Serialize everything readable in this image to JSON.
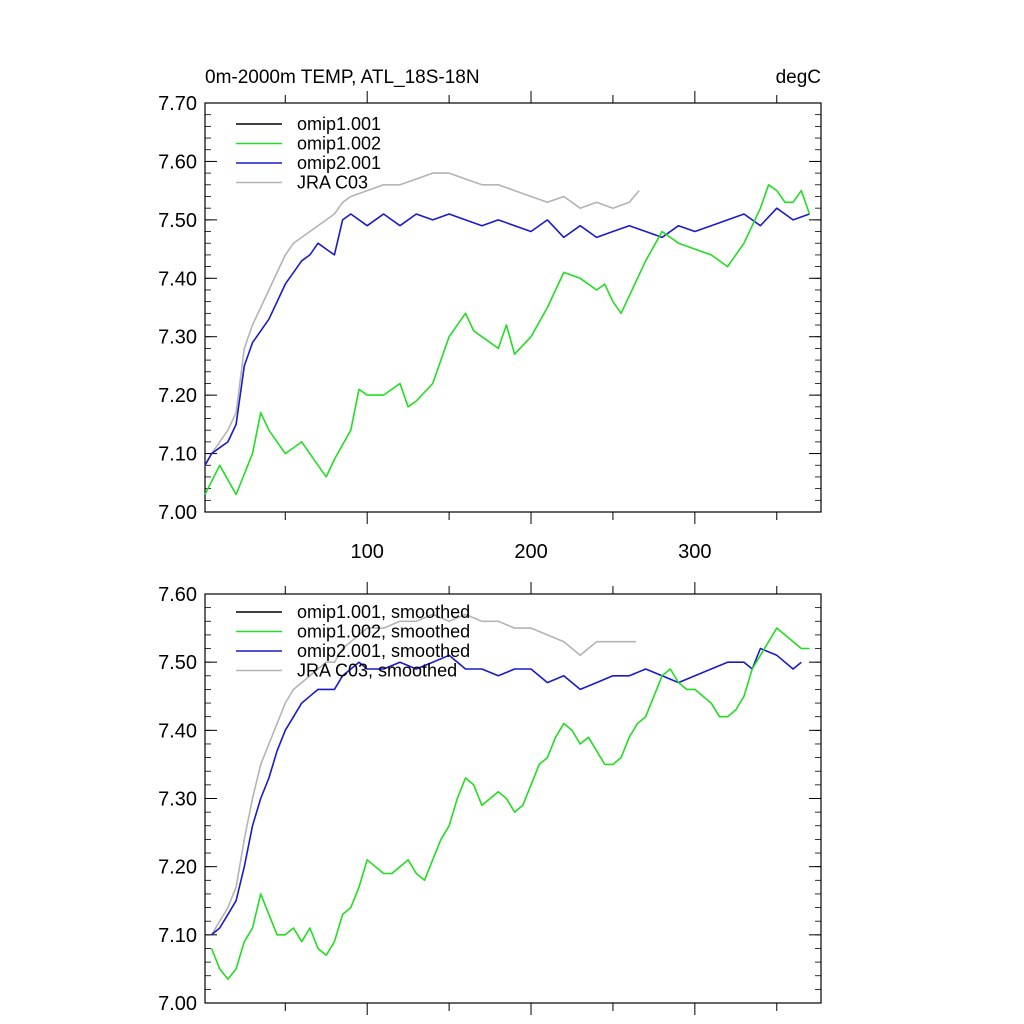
{
  "chart_data": [
    {
      "type": "line",
      "title": "0m-2000m TEMP, ATL_18S-18N",
      "units": "degC",
      "xlabel": "",
      "ylabel": "",
      "xlim": [
        1,
        377
      ],
      "ylim": [
        7.0,
        7.7
      ],
      "x_ticks": [
        "100",
        "200",
        "300"
      ],
      "y_ticks": [
        "7.00",
        "7.10",
        "7.20",
        "7.30",
        "7.40",
        "7.50",
        "7.60",
        "7.70"
      ],
      "legend_position": "top-left",
      "series": [
        {
          "name": "omip1.001",
          "color": "#000000",
          "x": [],
          "values": []
        },
        {
          "name": "omip1.002",
          "color": "#22dd22",
          "x": [
            1,
            10,
            20,
            30,
            35,
            40,
            50,
            60,
            70,
            75,
            80,
            90,
            95,
            100,
            110,
            120,
            125,
            130,
            140,
            145,
            150,
            160,
            165,
            170,
            180,
            185,
            190,
            200,
            210,
            220,
            230,
            240,
            245,
            250,
            255,
            260,
            270,
            280,
            290,
            300,
            310,
            320,
            330,
            340,
            345,
            350,
            355,
            360,
            365,
            370
          ],
          "values": [
            7.03,
            7.08,
            7.03,
            7.1,
            7.17,
            7.14,
            7.1,
            7.12,
            7.08,
            7.06,
            7.09,
            7.14,
            7.21,
            7.2,
            7.2,
            7.22,
            7.18,
            7.19,
            7.22,
            7.26,
            7.3,
            7.34,
            7.31,
            7.3,
            7.28,
            7.32,
            7.27,
            7.3,
            7.35,
            7.41,
            7.4,
            7.38,
            7.39,
            7.36,
            7.34,
            7.37,
            7.43,
            7.48,
            7.46,
            7.45,
            7.44,
            7.42,
            7.46,
            7.52,
            7.56,
            7.55,
            7.53,
            7.53,
            7.55,
            7.51
          ]
        },
        {
          "name": "omip2.001",
          "color": "#1a1acc",
          "x": [
            1,
            5,
            10,
            15,
            20,
            25,
            30,
            35,
            40,
            45,
            50,
            55,
            60,
            65,
            70,
            75,
            80,
            85,
            90,
            100,
            110,
            120,
            130,
            140,
            150,
            160,
            170,
            180,
            190,
            200,
            210,
            220,
            230,
            240,
            250,
            260,
            270,
            280,
            290,
            300,
            310,
            320,
            330,
            340,
            350,
            360,
            370
          ],
          "values": [
            7.08,
            7.1,
            7.11,
            7.12,
            7.15,
            7.25,
            7.29,
            7.31,
            7.33,
            7.36,
            7.39,
            7.41,
            7.43,
            7.44,
            7.46,
            7.45,
            7.44,
            7.5,
            7.51,
            7.49,
            7.51,
            7.49,
            7.51,
            7.5,
            7.51,
            7.5,
            7.49,
            7.5,
            7.49,
            7.48,
            7.5,
            7.47,
            7.49,
            7.47,
            7.48,
            7.49,
            7.48,
            7.47,
            7.49,
            7.48,
            7.49,
            7.5,
            7.51,
            7.49,
            7.52,
            7.5,
            7.51
          ]
        },
        {
          "name": "JRA C03",
          "color": "#b4b4b4",
          "x": [
            1,
            5,
            10,
            15,
            20,
            25,
            30,
            35,
            40,
            45,
            50,
            55,
            60,
            65,
            70,
            75,
            80,
            85,
            90,
            100,
            110,
            120,
            130,
            140,
            150,
            160,
            170,
            180,
            190,
            200,
            210,
            220,
            230,
            240,
            250,
            260,
            266
          ],
          "values": [
            7.08,
            7.1,
            7.12,
            7.14,
            7.17,
            7.28,
            7.32,
            7.35,
            7.38,
            7.41,
            7.44,
            7.46,
            7.47,
            7.48,
            7.49,
            7.5,
            7.51,
            7.53,
            7.54,
            7.55,
            7.56,
            7.56,
            7.57,
            7.58,
            7.58,
            7.57,
            7.56,
            7.56,
            7.55,
            7.54,
            7.53,
            7.54,
            7.52,
            7.53,
            7.52,
            7.53,
            7.55
          ]
        }
      ]
    },
    {
      "type": "line",
      "title": "",
      "xlabel": "",
      "ylabel": "",
      "xlim": [
        1,
        377
      ],
      "ylim": [
        7.0,
        7.6
      ],
      "y_ticks": [
        "7.00",
        "7.10",
        "7.20",
        "7.30",
        "7.40",
        "7.50",
        "7.60"
      ],
      "legend_position": "top-left",
      "series": [
        {
          "name": "omip1.001, smoothed",
          "color": "#000000",
          "x": [],
          "values": []
        },
        {
          "name": "omip1.002, smoothed",
          "color": "#22dd22",
          "x": [
            5,
            10,
            15,
            20,
            25,
            30,
            35,
            40,
            45,
            50,
            55,
            60,
            65,
            70,
            75,
            80,
            85,
            90,
            95,
            100,
            105,
            110,
            115,
            120,
            125,
            130,
            135,
            140,
            145,
            150,
            155,
            160,
            165,
            170,
            175,
            180,
            185,
            190,
            195,
            200,
            205,
            210,
            215,
            220,
            225,
            230,
            235,
            240,
            245,
            250,
            255,
            260,
            265,
            270,
            275,
            280,
            285,
            290,
            295,
            300,
            305,
            310,
            315,
            320,
            325,
            330,
            335,
            340,
            345,
            350,
            355,
            360,
            365,
            370
          ],
          "values": [
            7.08,
            7.05,
            7.035,
            7.05,
            7.09,
            7.11,
            7.16,
            7.13,
            7.1,
            7.1,
            7.11,
            7.09,
            7.11,
            7.08,
            7.07,
            7.09,
            7.13,
            7.14,
            7.17,
            7.21,
            7.2,
            7.19,
            7.19,
            7.2,
            7.21,
            7.19,
            7.18,
            7.21,
            7.24,
            7.26,
            7.3,
            7.33,
            7.32,
            7.29,
            7.3,
            7.31,
            7.3,
            7.28,
            7.29,
            7.32,
            7.35,
            7.36,
            7.39,
            7.41,
            7.4,
            7.38,
            7.39,
            7.37,
            7.35,
            7.35,
            7.36,
            7.39,
            7.41,
            7.42,
            7.45,
            7.48,
            7.49,
            7.47,
            7.46,
            7.46,
            7.45,
            7.44,
            7.42,
            7.42,
            7.43,
            7.45,
            7.49,
            7.51,
            7.53,
            7.55,
            7.54,
            7.53,
            7.52,
            7.52
          ]
        },
        {
          "name": "omip2.001, smoothed",
          "color": "#1a1acc",
          "x": [
            5,
            10,
            15,
            20,
            25,
            30,
            35,
            40,
            45,
            50,
            55,
            60,
            65,
            70,
            75,
            80,
            85,
            90,
            95,
            100,
            110,
            120,
            130,
            140,
            150,
            160,
            170,
            180,
            190,
            200,
            210,
            220,
            225,
            230,
            240,
            250,
            260,
            270,
            280,
            290,
            300,
            310,
            320,
            330,
            335,
            340,
            350,
            360,
            365
          ],
          "values": [
            7.1,
            7.11,
            7.13,
            7.15,
            7.2,
            7.26,
            7.3,
            7.33,
            7.37,
            7.4,
            7.42,
            7.44,
            7.45,
            7.46,
            7.46,
            7.46,
            7.48,
            7.49,
            7.5,
            7.49,
            7.49,
            7.5,
            7.49,
            7.5,
            7.51,
            7.49,
            7.49,
            7.48,
            7.49,
            7.49,
            7.47,
            7.48,
            7.47,
            7.46,
            7.47,
            7.48,
            7.48,
            7.49,
            7.48,
            7.47,
            7.48,
            7.49,
            7.5,
            7.5,
            7.49,
            7.52,
            7.51,
            7.49,
            7.5
          ]
        },
        {
          "name": "JRA C03, smoothed",
          "color": "#b4b4b4",
          "x": [
            5,
            10,
            15,
            20,
            25,
            30,
            35,
            40,
            45,
            50,
            55,
            60,
            65,
            70,
            75,
            80,
            85,
            90,
            95,
            100,
            110,
            120,
            130,
            140,
            150,
            160,
            170,
            180,
            190,
            200,
            210,
            220,
            225,
            230,
            240,
            250,
            260,
            264
          ],
          "values": [
            7.1,
            7.12,
            7.14,
            7.17,
            7.24,
            7.3,
            7.35,
            7.38,
            7.41,
            7.44,
            7.46,
            7.47,
            7.48,
            7.49,
            7.5,
            7.5,
            7.52,
            7.53,
            7.54,
            7.55,
            7.55,
            7.56,
            7.56,
            7.57,
            7.56,
            7.57,
            7.56,
            7.56,
            7.55,
            7.55,
            7.54,
            7.53,
            7.52,
            7.51,
            7.53,
            7.53,
            7.53,
            7.53
          ]
        }
      ]
    }
  ]
}
